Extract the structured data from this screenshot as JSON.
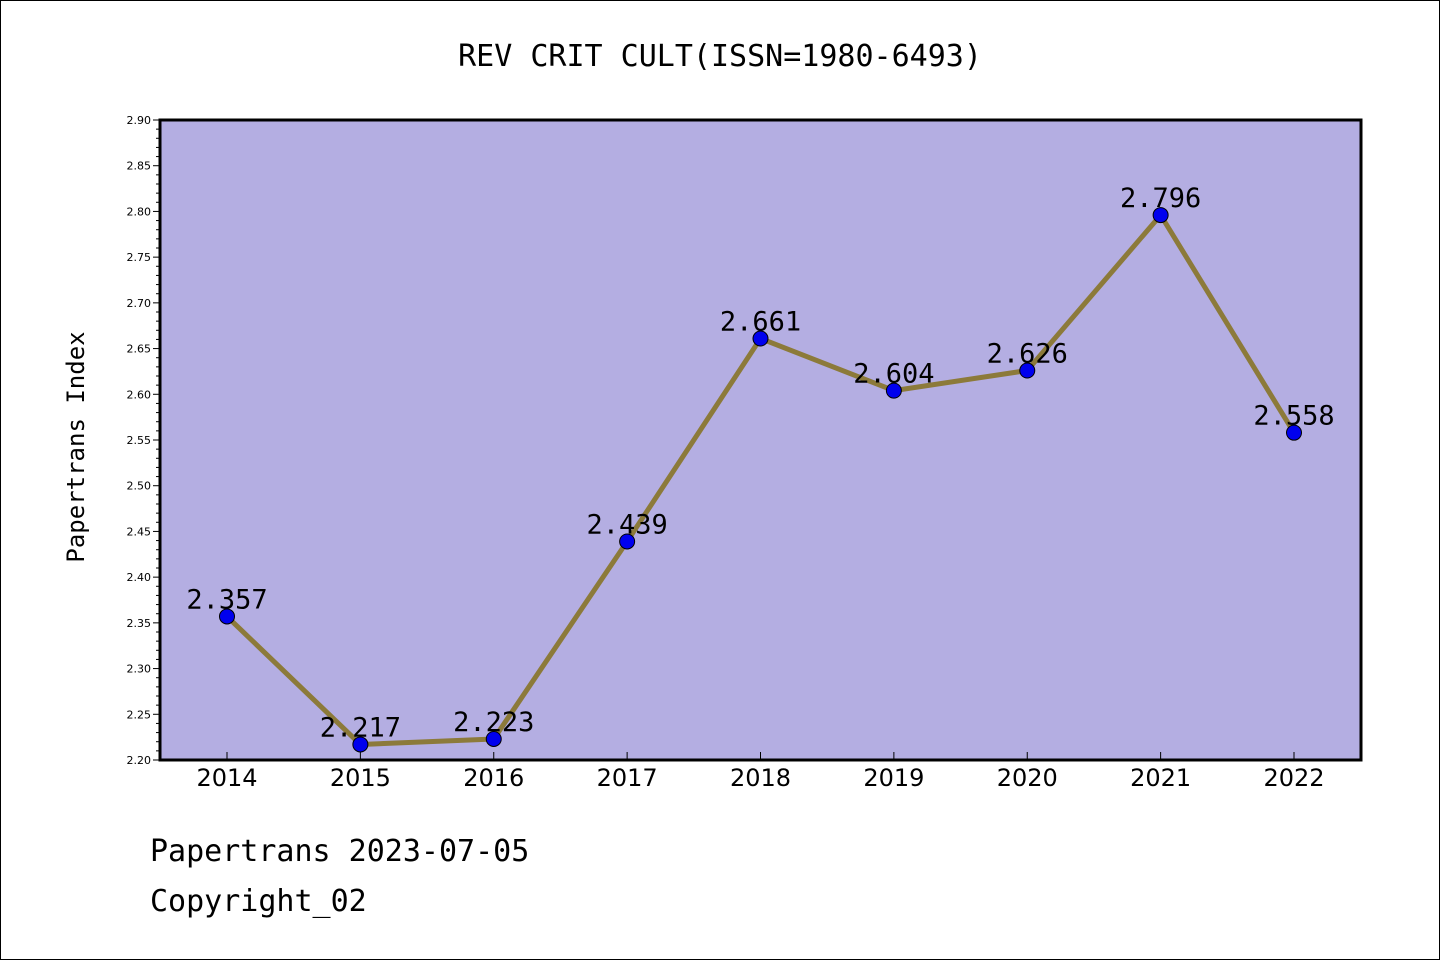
{
  "colors": {
    "plot_background": "#b4aee2",
    "line": "#8c7a3a",
    "marker": "#0000ee"
  },
  "footer": {
    "line1": "Papertrans 2023-07-05",
    "line2": "Copyright_02"
  },
  "chart_data": {
    "type": "line",
    "title": "REV CRIT CULT(ISSN=1980-6493)",
    "xlabel": "",
    "ylabel": "Papertrans Index",
    "categories": [
      "2014",
      "2015",
      "2016",
      "2017",
      "2018",
      "2019",
      "2020",
      "2021",
      "2022"
    ],
    "series": [
      {
        "values": [
          2.357,
          2.217,
          2.223,
          2.439,
          2.661,
          2.604,
          2.626,
          2.796,
          2.558
        ],
        "labels": [
          "2.357",
          "2.217",
          "2.223",
          "2.439",
          "2.661",
          "2.604",
          "2.626",
          "2.796",
          "2.558"
        ]
      }
    ],
    "ylim": [
      2.2,
      2.9
    ],
    "yticks": [
      "2.20",
      "2.25",
      "2.30",
      "2.35",
      "2.40",
      "2.45",
      "2.50",
      "2.55",
      "2.60",
      "2.65",
      "2.70",
      "2.75",
      "2.80",
      "2.85",
      "2.90"
    ],
    "grid": false,
    "legend": "none"
  }
}
